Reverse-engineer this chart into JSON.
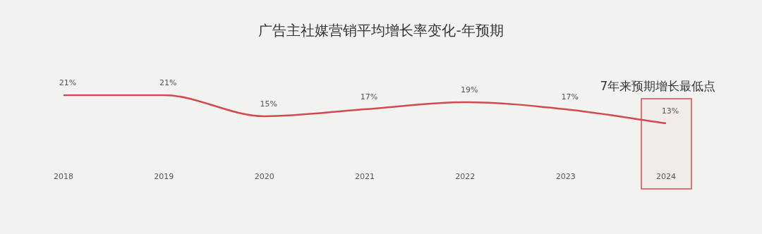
{
  "chart_data": {
    "type": "line",
    "title": "广告主社媒营销平均增长率变化-年预期",
    "categories": [
      "2018",
      "2019",
      "2020",
      "2021",
      "2022",
      "2023",
      "2024"
    ],
    "series": [
      {
        "color": "#d04a4e",
        "values": [
          21,
          21,
          15,
          17,
          19,
          17,
          13
        ],
        "value_labels": [
          "21%",
          "21%",
          "15%",
          "17%",
          "19%",
          "17%",
          "13%"
        ]
      }
    ],
    "tick_labels": "x",
    "grid": false,
    "legend": false,
    "marker": "none",
    "line_style": "solid",
    "bands": [
      {
        "axis": "x",
        "from": "2024",
        "to": "2024",
        "label": "7年来预期增长最低点",
        "color": "#e0474c"
      }
    ]
  }
}
